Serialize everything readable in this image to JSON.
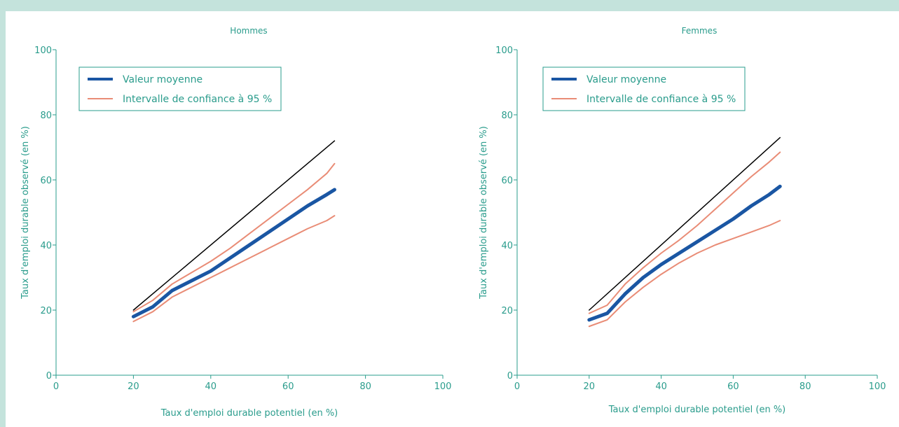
{
  "colors": {
    "background": "#c4e3dc",
    "text": "#2a9c8c",
    "axis": "#2a9c8c",
    "mean": "#1a56a3",
    "ci": "#e98c76",
    "diagonal": "#000000"
  },
  "chart_data": [
    {
      "type": "line",
      "title": "Hommes",
      "xlabel": "Taux d'emploi durable potentiel (en %)",
      "ylabel": "Taux d'emploi durable observé (en %)",
      "xlim": [
        0,
        100
      ],
      "ylim": [
        0,
        100
      ],
      "xticks": [
        "0",
        "20",
        "40",
        "60",
        "80",
        "100"
      ],
      "yticks": [
        "0",
        "20",
        "40",
        "60",
        "80",
        "100"
      ],
      "grid": false,
      "legend_position": "top-left",
      "series": [
        {
          "name": "Valeur moyenne",
          "role": "mean",
          "x": [
            20,
            25,
            30,
            35,
            40,
            45,
            50,
            55,
            60,
            65,
            70,
            72
          ],
          "y": [
            18,
            21,
            26,
            29,
            32,
            36,
            40,
            44,
            48,
            52,
            55.5,
            57
          ]
        },
        {
          "name": "Intervalle de confiance à 95 %",
          "role": "ci",
          "x": [
            20,
            25,
            30,
            35,
            40,
            45,
            50,
            55,
            60,
            65,
            70,
            72
          ],
          "y": [
            19.5,
            23,
            28,
            31.5,
            35,
            39,
            43.5,
            48,
            52.5,
            57,
            62,
            65
          ]
        },
        {
          "name": "",
          "role": "ci",
          "x": [
            20,
            25,
            30,
            35,
            40,
            45,
            50,
            55,
            60,
            65,
            70,
            72
          ],
          "y": [
            16.5,
            19.5,
            24,
            27,
            30,
            33,
            36,
            39,
            42,
            45,
            47.5,
            49
          ]
        },
        {
          "name": "",
          "role": "diagonal",
          "x": [
            20,
            72
          ],
          "y": [
            20,
            72
          ]
        }
      ]
    },
    {
      "type": "line",
      "title": "Femmes",
      "xlabel": "Taux d'emploi durable potentiel (en %)",
      "ylabel": "Taux d'emploi durable observé (en %)",
      "xlim": [
        0,
        100
      ],
      "ylim": [
        0,
        100
      ],
      "xticks": [
        "0",
        "20",
        "40",
        "60",
        "80",
        "100"
      ],
      "yticks": [
        "0",
        "20",
        "40",
        "60",
        "80",
        "100"
      ],
      "grid": false,
      "legend_position": "top-left",
      "series": [
        {
          "name": "Valeur moyenne",
          "role": "mean",
          "x": [
            20,
            25,
            30,
            35,
            40,
            45,
            50,
            55,
            60,
            65,
            70,
            73
          ],
          "y": [
            17,
            19,
            25,
            30,
            34,
            37.5,
            41,
            44.5,
            48,
            52,
            55.5,
            58
          ]
        },
        {
          "name": "Intervalle de confiance à 95 %",
          "role": "ci",
          "x": [
            20,
            25,
            30,
            35,
            40,
            45,
            50,
            55,
            60,
            65,
            70,
            73
          ],
          "y": [
            19,
            21.5,
            28,
            33,
            37.5,
            41.5,
            46,
            51,
            56,
            61,
            65.5,
            68.5
          ]
        },
        {
          "name": "",
          "role": "ci",
          "x": [
            20,
            25,
            30,
            35,
            40,
            45,
            50,
            55,
            60,
            65,
            70,
            73
          ],
          "y": [
            15,
            17,
            22.5,
            27,
            31,
            34.5,
            37.5,
            40,
            42,
            44,
            46,
            47.5
          ]
        },
        {
          "name": "",
          "role": "diagonal",
          "x": [
            20,
            73
          ],
          "y": [
            20,
            73
          ]
        }
      ]
    }
  ]
}
